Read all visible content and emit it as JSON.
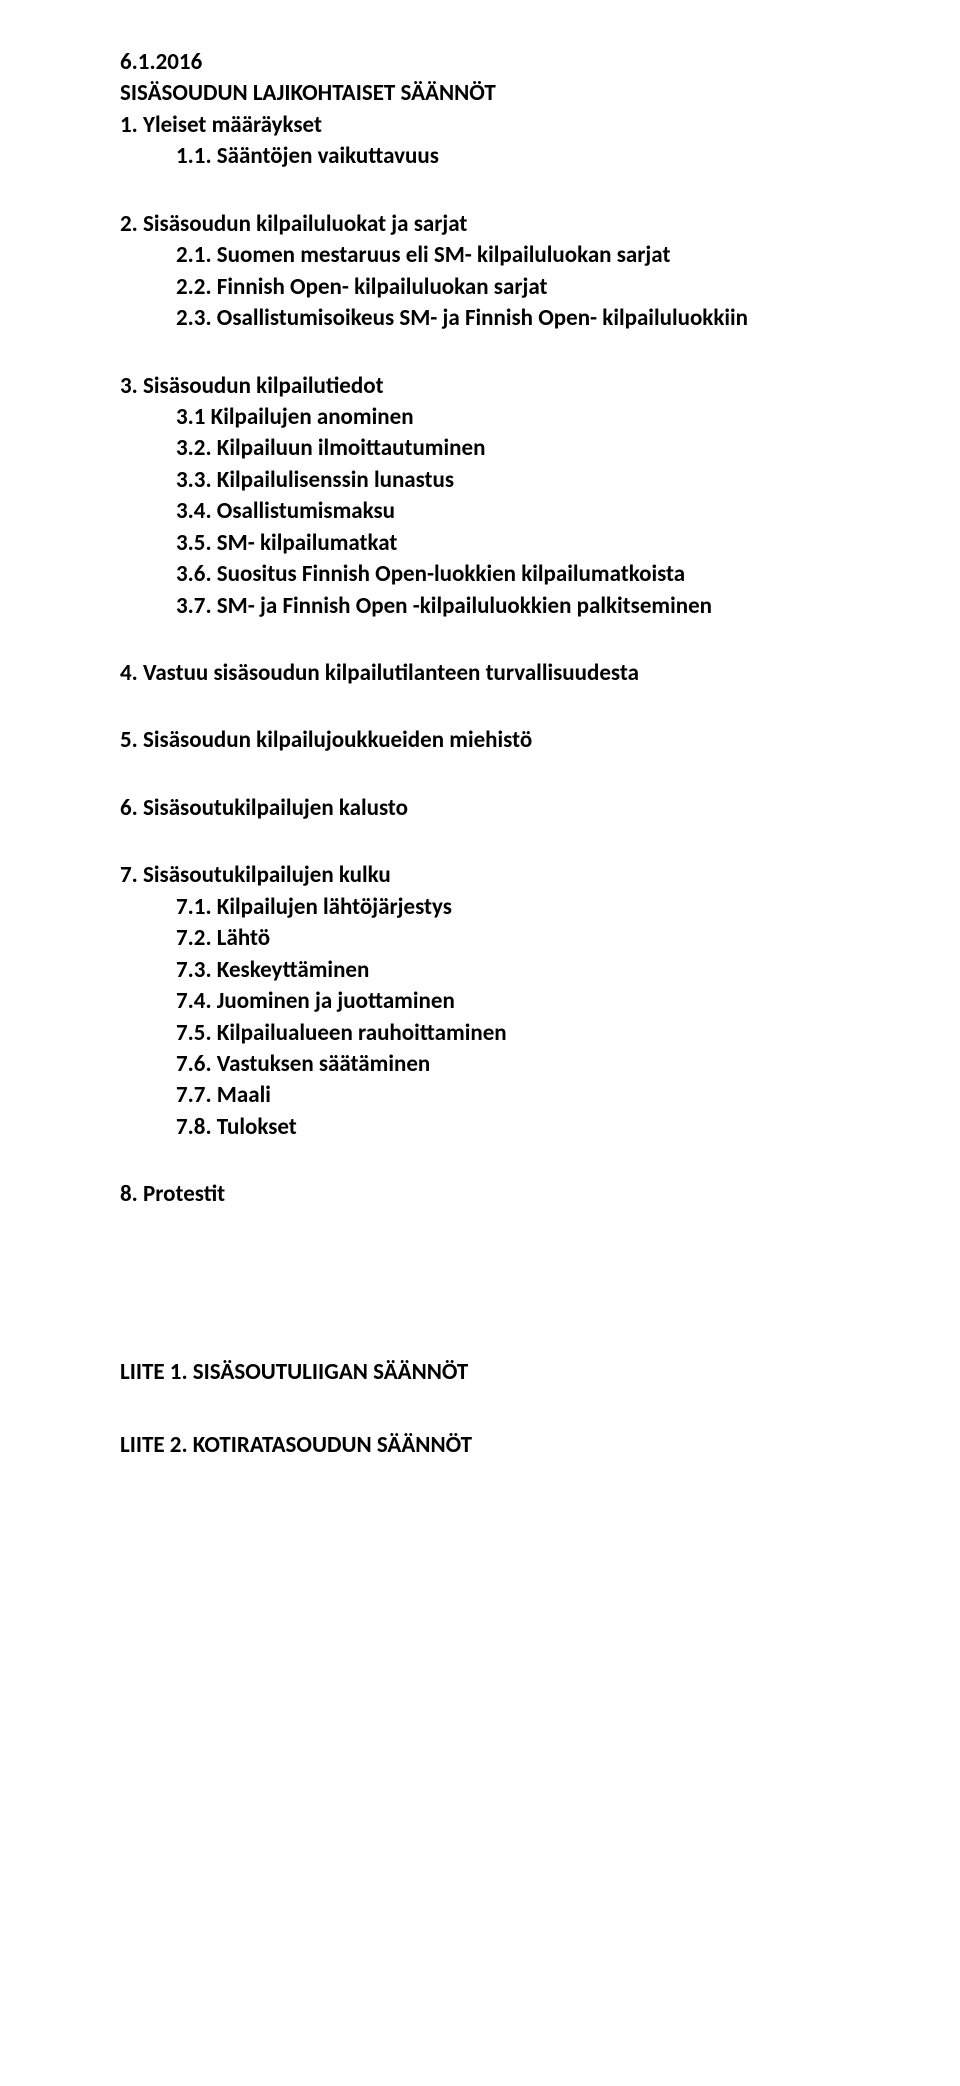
{
  "date": "6.1.2016",
  "doc_title": "SISÄSOUDUN LAJIKOHTAISET SÄÄNNÖT",
  "sections": {
    "s1": {
      "heading": "1.   Yleiset määräykset",
      "items": [
        "1.1. Sääntöjen vaikuttavuus"
      ]
    },
    "s2": {
      "heading": "2.   Sisäsoudun kilpailuluokat ja sarjat",
      "items": [
        "2.1. Suomen mestaruus eli SM- kilpailuluokan sarjat",
        "2.2. Finnish Open- kilpailuluokan sarjat",
        "2.3. Osallistumisoikeus SM- ja Finnish Open- kilpailuluokkiin"
      ]
    },
    "s3": {
      "heading": "3.   Sisäsoudun kilpailutiedot",
      "items": [
        "3.1 Kilpailujen anominen",
        "3.2. Kilpailuun ilmoittautuminen",
        "3.3. Kilpailulisenssin lunastus",
        "3.4. Osallistumismaksu",
        "3.5. SM- kilpailumatkat",
        "3.6. Suositus Finnish Open-luokkien kilpailumatkoista",
        "3.7. SM- ja Finnish Open -kilpailuluokkien palkitseminen"
      ]
    },
    "s4": {
      "heading": "4.   Vastuu sisäsoudun kilpailutilanteen turvallisuudesta"
    },
    "s5": {
      "heading": "5.   Sisäsoudun kilpailujoukkueiden miehistö"
    },
    "s6": {
      "heading": "6.   Sisäsoutukilpailujen kalusto"
    },
    "s7": {
      "heading": "7.   Sisäsoutukilpailujen kulku",
      "items": [
        "7.1. Kilpailujen lähtöjärjestys",
        "7.2. Lähtö",
        "7.3. Keskeyttäminen",
        "7.4. Juominen ja juottaminen",
        "7.5. Kilpailualueen rauhoittaminen",
        "7.6. Vastuksen säätäminen",
        "7.7. Maali",
        "7.8. Tulokset"
      ]
    },
    "s8": {
      "heading": "8.   Protestit"
    }
  },
  "appendices": {
    "a1": "LIITE 1. SISÄSOUTULIIGAN SÄÄNNÖT",
    "a2": "LIITE 2. KOTIRATASOUDUN SÄÄNNÖT"
  }
}
